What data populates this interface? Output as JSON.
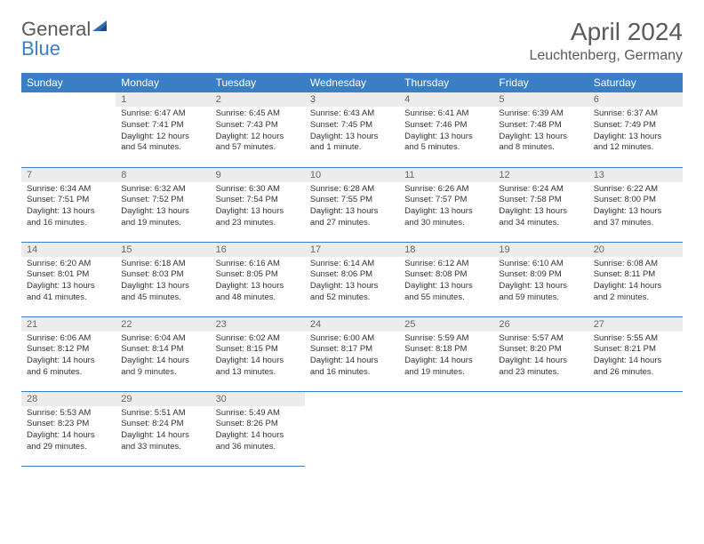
{
  "brand": {
    "part1": "General",
    "part2": "Blue"
  },
  "title": "April 2024",
  "location": "Leuchtenberg, Germany",
  "colors": {
    "header_bg": "#3a7fc4",
    "header_text": "#ffffff",
    "daynum_bg": "#ececec",
    "daynum_text": "#6a6a6a",
    "border": "#3a7fc4",
    "text": "#333333",
    "title_text": "#5a5a5a"
  },
  "weekdays": [
    "Sunday",
    "Monday",
    "Tuesday",
    "Wednesday",
    "Thursday",
    "Friday",
    "Saturday"
  ],
  "weeks": [
    [
      null,
      {
        "n": "1",
        "sr": "Sunrise: 6:47 AM",
        "ss": "Sunset: 7:41 PM",
        "dl": "Daylight: 12 hours and 54 minutes."
      },
      {
        "n": "2",
        "sr": "Sunrise: 6:45 AM",
        "ss": "Sunset: 7:43 PM",
        "dl": "Daylight: 12 hours and 57 minutes."
      },
      {
        "n": "3",
        "sr": "Sunrise: 6:43 AM",
        "ss": "Sunset: 7:45 PM",
        "dl": "Daylight: 13 hours and 1 minute."
      },
      {
        "n": "4",
        "sr": "Sunrise: 6:41 AM",
        "ss": "Sunset: 7:46 PM",
        "dl": "Daylight: 13 hours and 5 minutes."
      },
      {
        "n": "5",
        "sr": "Sunrise: 6:39 AM",
        "ss": "Sunset: 7:48 PM",
        "dl": "Daylight: 13 hours and 8 minutes."
      },
      {
        "n": "6",
        "sr": "Sunrise: 6:37 AM",
        "ss": "Sunset: 7:49 PM",
        "dl": "Daylight: 13 hours and 12 minutes."
      }
    ],
    [
      {
        "n": "7",
        "sr": "Sunrise: 6:34 AM",
        "ss": "Sunset: 7:51 PM",
        "dl": "Daylight: 13 hours and 16 minutes."
      },
      {
        "n": "8",
        "sr": "Sunrise: 6:32 AM",
        "ss": "Sunset: 7:52 PM",
        "dl": "Daylight: 13 hours and 19 minutes."
      },
      {
        "n": "9",
        "sr": "Sunrise: 6:30 AM",
        "ss": "Sunset: 7:54 PM",
        "dl": "Daylight: 13 hours and 23 minutes."
      },
      {
        "n": "10",
        "sr": "Sunrise: 6:28 AM",
        "ss": "Sunset: 7:55 PM",
        "dl": "Daylight: 13 hours and 27 minutes."
      },
      {
        "n": "11",
        "sr": "Sunrise: 6:26 AM",
        "ss": "Sunset: 7:57 PM",
        "dl": "Daylight: 13 hours and 30 minutes."
      },
      {
        "n": "12",
        "sr": "Sunrise: 6:24 AM",
        "ss": "Sunset: 7:58 PM",
        "dl": "Daylight: 13 hours and 34 minutes."
      },
      {
        "n": "13",
        "sr": "Sunrise: 6:22 AM",
        "ss": "Sunset: 8:00 PM",
        "dl": "Daylight: 13 hours and 37 minutes."
      }
    ],
    [
      {
        "n": "14",
        "sr": "Sunrise: 6:20 AM",
        "ss": "Sunset: 8:01 PM",
        "dl": "Daylight: 13 hours and 41 minutes."
      },
      {
        "n": "15",
        "sr": "Sunrise: 6:18 AM",
        "ss": "Sunset: 8:03 PM",
        "dl": "Daylight: 13 hours and 45 minutes."
      },
      {
        "n": "16",
        "sr": "Sunrise: 6:16 AM",
        "ss": "Sunset: 8:05 PM",
        "dl": "Daylight: 13 hours and 48 minutes."
      },
      {
        "n": "17",
        "sr": "Sunrise: 6:14 AM",
        "ss": "Sunset: 8:06 PM",
        "dl": "Daylight: 13 hours and 52 minutes."
      },
      {
        "n": "18",
        "sr": "Sunrise: 6:12 AM",
        "ss": "Sunset: 8:08 PM",
        "dl": "Daylight: 13 hours and 55 minutes."
      },
      {
        "n": "19",
        "sr": "Sunrise: 6:10 AM",
        "ss": "Sunset: 8:09 PM",
        "dl": "Daylight: 13 hours and 59 minutes."
      },
      {
        "n": "20",
        "sr": "Sunrise: 6:08 AM",
        "ss": "Sunset: 8:11 PM",
        "dl": "Daylight: 14 hours and 2 minutes."
      }
    ],
    [
      {
        "n": "21",
        "sr": "Sunrise: 6:06 AM",
        "ss": "Sunset: 8:12 PM",
        "dl": "Daylight: 14 hours and 6 minutes."
      },
      {
        "n": "22",
        "sr": "Sunrise: 6:04 AM",
        "ss": "Sunset: 8:14 PM",
        "dl": "Daylight: 14 hours and 9 minutes."
      },
      {
        "n": "23",
        "sr": "Sunrise: 6:02 AM",
        "ss": "Sunset: 8:15 PM",
        "dl": "Daylight: 14 hours and 13 minutes."
      },
      {
        "n": "24",
        "sr": "Sunrise: 6:00 AM",
        "ss": "Sunset: 8:17 PM",
        "dl": "Daylight: 14 hours and 16 minutes."
      },
      {
        "n": "25",
        "sr": "Sunrise: 5:59 AM",
        "ss": "Sunset: 8:18 PM",
        "dl": "Daylight: 14 hours and 19 minutes."
      },
      {
        "n": "26",
        "sr": "Sunrise: 5:57 AM",
        "ss": "Sunset: 8:20 PM",
        "dl": "Daylight: 14 hours and 23 minutes."
      },
      {
        "n": "27",
        "sr": "Sunrise: 5:55 AM",
        "ss": "Sunset: 8:21 PM",
        "dl": "Daylight: 14 hours and 26 minutes."
      }
    ],
    [
      {
        "n": "28",
        "sr": "Sunrise: 5:53 AM",
        "ss": "Sunset: 8:23 PM",
        "dl": "Daylight: 14 hours and 29 minutes."
      },
      {
        "n": "29",
        "sr": "Sunrise: 5:51 AM",
        "ss": "Sunset: 8:24 PM",
        "dl": "Daylight: 14 hours and 33 minutes."
      },
      {
        "n": "30",
        "sr": "Sunrise: 5:49 AM",
        "ss": "Sunset: 8:26 PM",
        "dl": "Daylight: 14 hours and 36 minutes."
      },
      null,
      null,
      null,
      null
    ]
  ]
}
